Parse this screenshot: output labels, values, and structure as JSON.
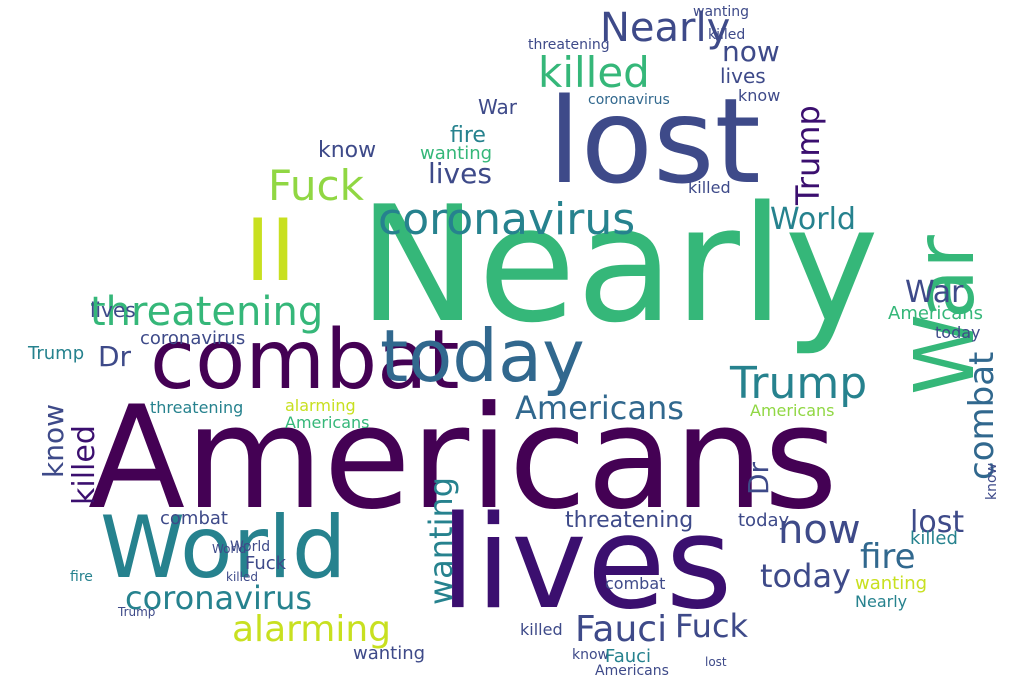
{
  "palette": {
    "purple": "#440154",
    "deep": "#3b0f6f",
    "indigo": "#3e4a89",
    "blue": "#31688e",
    "teal": "#26828e",
    "green": "#35b779",
    "lime": "#90d743",
    "yellow": "#c8e020"
  },
  "words": [
    "Americans",
    "lives",
    "Nearly",
    "lost",
    "World",
    "combat",
    "today",
    "War",
    "II",
    "Fuck",
    "coronavirus",
    "threatening",
    "Trump",
    "killed",
    "know",
    "now",
    "alarming",
    "Fauci",
    "fire",
    "wanting",
    "Dr"
  ]
}
